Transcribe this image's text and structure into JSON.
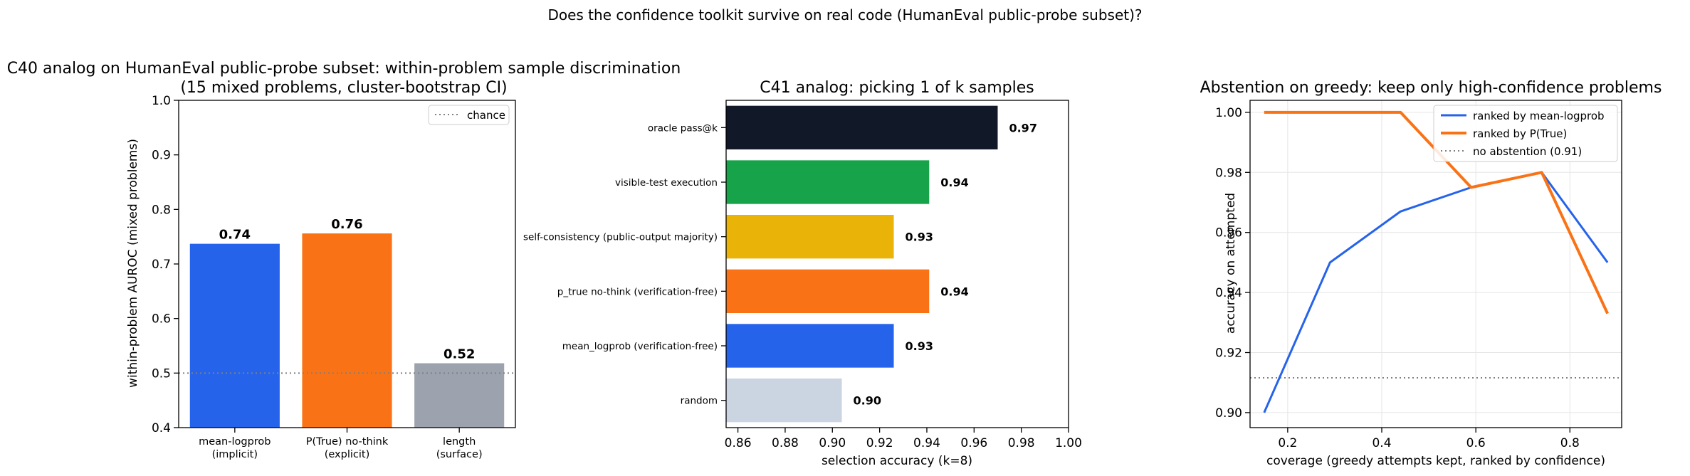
{
  "suptitle": "Does the confidence toolkit survive on real code (HumanEval public-probe subset)?",
  "chart_data": [
    {
      "type": "bar",
      "title_line1": "C40 analog on HumanEval public-probe subset: within-problem sample discrimination",
      "title_line2": "(15 mixed problems, cluster-bootstrap CI)",
      "ylabel": "within-problem AUROC (mixed problems)",
      "ylim": [
        0.4,
        1.0
      ],
      "yticks": [
        "0.4",
        "0.5",
        "0.6",
        "0.7",
        "0.8",
        "0.9",
        "1.0"
      ],
      "categories": [
        {
          "line1": "mean-logprob",
          "line2": "(implicit)"
        },
        {
          "line1": "P(True) no-think",
          "line2": "(explicit)"
        },
        {
          "line1": "length",
          "line2": "(surface)"
        }
      ],
      "values": [
        0.737,
        0.756,
        0.518
      ],
      "value_labels": [
        "0.74",
        "0.76",
        "0.52"
      ],
      "colors": [
        "#2563eb",
        "#f97316",
        "#9ca3af"
      ],
      "reference": {
        "value": 0.5,
        "label": "chance",
        "color": "#808080"
      },
      "legend_position": "top-right"
    },
    {
      "type": "bar",
      "orientation": "horizontal",
      "title": "C41 analog: picking 1 of k samples",
      "xlabel": "selection accuracy (k=8)",
      "xlim": [
        0.855,
        1.0
      ],
      "xticks": [
        "0.86",
        "0.88",
        "0.90",
        "0.92",
        "0.94",
        "0.96",
        "0.98",
        "1.00"
      ],
      "categories": [
        "oracle pass@k",
        "visible-test execution",
        "self-consistency (public-output majority)",
        "p_true no-think (verification-free)",
        "mean_logprob (verification-free)",
        "random"
      ],
      "values": [
        0.97,
        0.941,
        0.926,
        0.941,
        0.926,
        0.904
      ],
      "value_labels": [
        "0.97",
        "0.94",
        "0.93",
        "0.94",
        "0.93",
        "0.90"
      ],
      "colors": [
        "#111827",
        "#16a34a",
        "#eab308",
        "#f97316",
        "#2563eb",
        "#cbd5e1"
      ]
    },
    {
      "type": "line",
      "title": "Abstention on greedy: keep only high-confidence problems",
      "xlabel": "coverage (greedy attempts kept, ranked by confidence)",
      "ylabel": "accuracy on attempted",
      "xlim": [
        0.12,
        0.91
      ],
      "ylim": [
        0.895,
        1.004
      ],
      "xticks": [
        "0.2",
        "0.4",
        "0.6",
        "0.8"
      ],
      "yticks": [
        "0.90",
        "0.92",
        "0.94",
        "0.96",
        "0.98",
        "1.00"
      ],
      "grid": true,
      "legend_position": "top-right",
      "series": [
        {
          "name": "ranked by mean-logprob",
          "color": "#2563eb",
          "width": 3,
          "x": [
            0.15,
            0.29,
            0.44,
            0.59,
            0.74,
            0.88
          ],
          "y": [
            0.9,
            0.95,
            0.967,
            0.975,
            0.98,
            0.95
          ]
        },
        {
          "name": "ranked by P(True)",
          "color": "#f97316",
          "width": 4,
          "x": [
            0.15,
            0.29,
            0.44,
            0.59,
            0.74,
            0.88
          ],
          "y": [
            1.0,
            1.0,
            1.0,
            0.975,
            0.98,
            0.933
          ]
        }
      ],
      "reference": {
        "value": 0.9116,
        "label": "no abstention (0.91)",
        "color": "#808080"
      }
    }
  ]
}
